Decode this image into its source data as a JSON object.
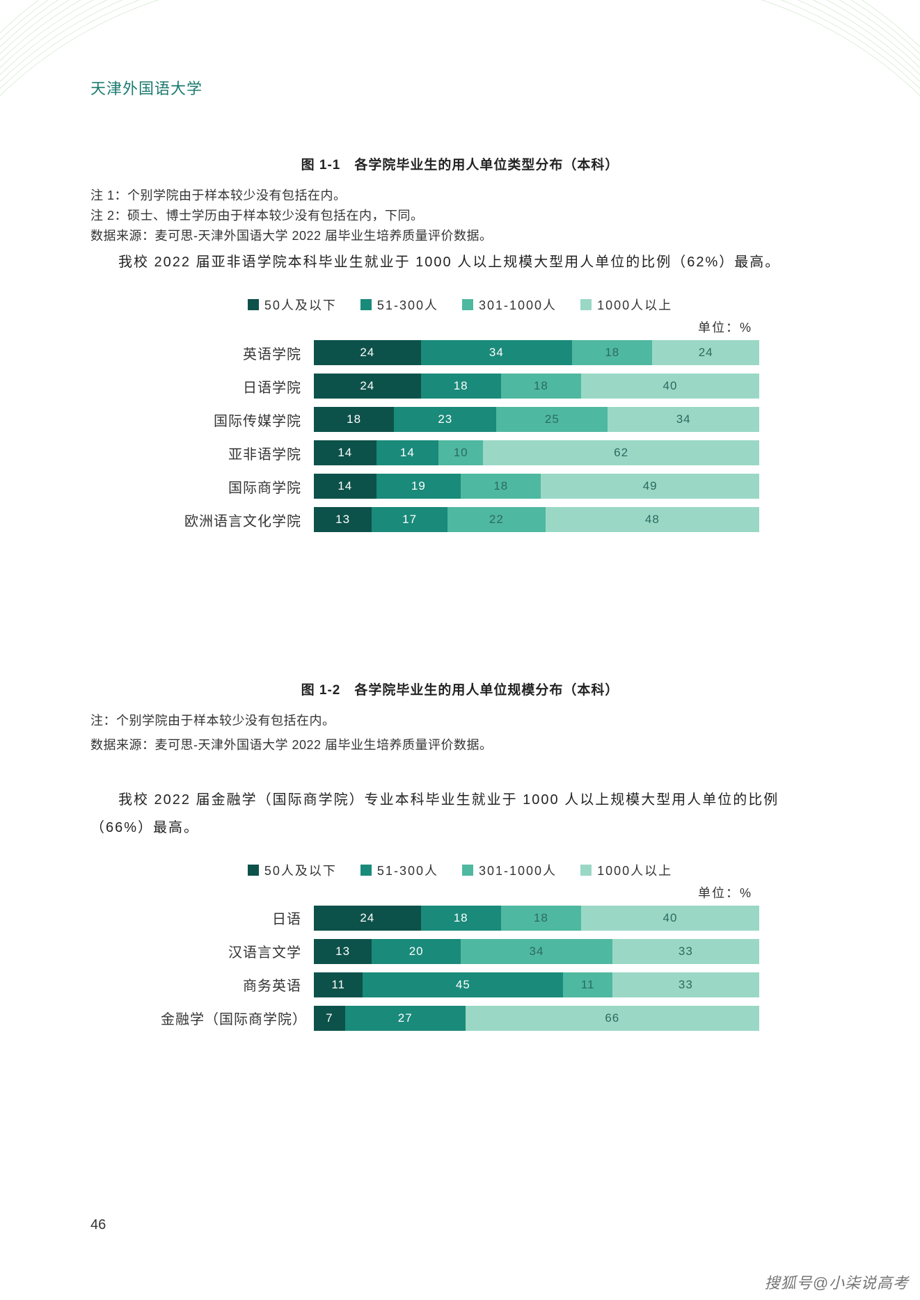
{
  "header": {
    "org": "天津外国语大学"
  },
  "page_number": "46",
  "watermark": "搜狐号@小柒说高考",
  "colors": {
    "accent": "#1a7a6e",
    "seg1": "#0d524a",
    "seg2": "#1a8a7a",
    "seg3": "#4fb8a0",
    "seg4": "#9ad8c5",
    "deco": "#9ed09a"
  },
  "section1": {
    "fig_title": "图 1-1　各学院毕业生的用人单位类型分布（本科）",
    "notes": [
      "注 1：个别学院由于样本较少没有包括在内。",
      "注 2：硕士、博士学历由于样本较少没有包括在内，下同。",
      "数据来源：麦可思-天津外国语大学 2022 届毕业生培养质量评价数据。"
    ],
    "body": "我校 2022 届亚非语学院本科毕业生就业于 1000 人以上规模大型用人单位的比例（62%）最高。"
  },
  "chart1": {
    "type": "stacked-bar-horizontal",
    "unit": "单位：%",
    "legend": [
      {
        "label": "50人及以下",
        "color": "#0d524a"
      },
      {
        "label": "51-300人",
        "color": "#1a8a7a"
      },
      {
        "label": "301-1000人",
        "color": "#4fb8a0"
      },
      {
        "label": "1000人以上",
        "color": "#9ad8c5"
      }
    ],
    "rows": [
      {
        "label": "英语学院",
        "values": [
          24,
          34,
          18,
          24
        ]
      },
      {
        "label": "日语学院",
        "values": [
          24,
          18,
          18,
          40
        ]
      },
      {
        "label": "国际传媒学院",
        "values": [
          18,
          23,
          25,
          34
        ]
      },
      {
        "label": "亚非语学院",
        "values": [
          14,
          14,
          10,
          62
        ]
      },
      {
        "label": "国际商学院",
        "values": [
          14,
          19,
          18,
          49
        ]
      },
      {
        "label": "欧洲语言文化学院",
        "values": [
          13,
          17,
          22,
          48
        ]
      }
    ]
  },
  "section2": {
    "fig_title": "图 1-2　各学院毕业生的用人单位规模分布（本科）",
    "notes": [
      "注：个别学院由于样本较少没有包括在内。",
      "数据来源：麦可思-天津外国语大学 2022 届毕业生培养质量评价数据。"
    ],
    "body": "我校 2022 届金融学（国际商学院）专业本科毕业生就业于 1000 人以上规模大型用人单位的比例（66%）最高。"
  },
  "chart2": {
    "type": "stacked-bar-horizontal",
    "unit": "单位：%",
    "legend": [
      {
        "label": "50人及以下",
        "color": "#0d524a"
      },
      {
        "label": "51-300人",
        "color": "#1a8a7a"
      },
      {
        "label": "301-1000人",
        "color": "#4fb8a0"
      },
      {
        "label": "1000人以上",
        "color": "#9ad8c5"
      }
    ],
    "rows": [
      {
        "label": "日语",
        "values": [
          24,
          18,
          18,
          40
        ]
      },
      {
        "label": "汉语言文学",
        "values": [
          13,
          20,
          34,
          33
        ]
      },
      {
        "label": "商务英语",
        "values": [
          11,
          45,
          11,
          33
        ]
      },
      {
        "label": "金融学（国际商学院）",
        "values": [
          7,
          27,
          0,
          66
        ]
      }
    ]
  }
}
